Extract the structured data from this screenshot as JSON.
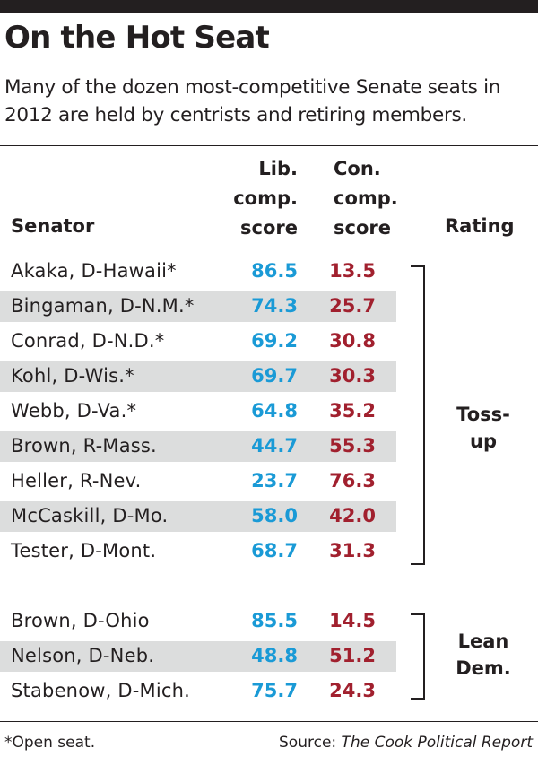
{
  "title": "On the Hot Seat",
  "subtitle": "Many of the dozen most-competitive Senate seats in 2012 are held by centrists and retiring members.",
  "headers": {
    "senator": "Senator",
    "lib_line1": "Lib.",
    "lib_line2": "comp.",
    "lib_line3": "score",
    "con_line1": "Con.",
    "con_line2": "comp.",
    "con_line3": "score",
    "rating": "Rating"
  },
  "colors": {
    "lib": "#1a9ad6",
    "con": "#a1202e",
    "shade": "#dcdddd"
  },
  "rows": [
    {
      "senator": "Akaka, D-Hawaii*",
      "lib": "86.5",
      "con": "13.5"
    },
    {
      "senator": "Bingaman, D-N.M.*",
      "lib": "74.3",
      "con": "25.7"
    },
    {
      "senator": "Conrad, D-N.D.*",
      "lib": "69.2",
      "con": "30.8"
    },
    {
      "senator": "Kohl, D-Wis.*",
      "lib": "69.7",
      "con": "30.3"
    },
    {
      "senator": "Webb, D-Va.*",
      "lib": "64.8",
      "con": "35.2"
    },
    {
      "senator": "Brown, R-Mass.",
      "lib": "44.7",
      "con": "55.3"
    },
    {
      "senator": "Heller, R-Nev.",
      "lib": "23.7",
      "con": "76.3"
    },
    {
      "senator": "McCaskill, D-Mo.",
      "lib": "58.0",
      "con": "42.0"
    },
    {
      "senator": "Tester, D-Mont.",
      "lib": "68.7",
      "con": "31.3"
    },
    {
      "senator": "Brown, D-Ohio",
      "lib": "85.5",
      "con": "14.5"
    },
    {
      "senator": "Nelson, D-Neb.",
      "lib": "48.8",
      "con": "51.2"
    },
    {
      "senator": "Stabenow, D-Mich.",
      "lib": "75.7",
      "con": "24.3"
    }
  ],
  "ratings": {
    "tossup_line1": "Toss-",
    "tossup_line2": "up",
    "lean_line1": "Lean",
    "lean_line2": "Dem."
  },
  "footer": {
    "note": "*Open seat.",
    "source_prefix": "Source: ",
    "source_name": "The Cook Political Report"
  }
}
